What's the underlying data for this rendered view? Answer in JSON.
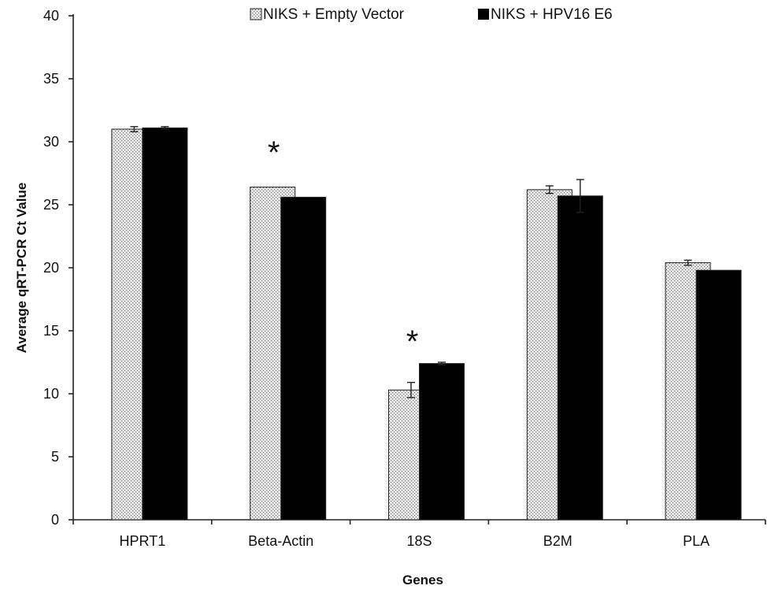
{
  "chart_data": {
    "type": "bar",
    "title": "",
    "xlabel": "Genes",
    "ylabel": "Average qRT-PCR Ct Value",
    "ylim": [
      0,
      40
    ],
    "yticks": [
      0,
      5,
      10,
      15,
      20,
      25,
      30,
      35,
      40
    ],
    "grid": false,
    "legend_position": "top",
    "categories": [
      "HPRT1",
      "Beta-Actin",
      "18S",
      "B2M",
      "PLA"
    ],
    "series": [
      {
        "name": "NIKS + Empty Vector",
        "pattern": "stippled",
        "color": "#d9d9d9",
        "values": [
          31.0,
          26.4,
          10.3,
          26.2,
          20.4
        ],
        "errors": [
          0.2,
          0.0,
          0.6,
          0.3,
          0.2
        ]
      },
      {
        "name": "NIKS + HPV16 E6",
        "pattern": "solid",
        "color": "#000000",
        "values": [
          31.1,
          25.6,
          12.4,
          25.7,
          19.8
        ],
        "errors": [
          0.1,
          0.0,
          0.1,
          1.3,
          0.0
        ]
      }
    ],
    "annotations": [
      {
        "text": "*",
        "category": "Beta-Actin",
        "y": 29.8
      },
      {
        "text": "*",
        "category": "18S",
        "y": 14.8
      }
    ]
  }
}
